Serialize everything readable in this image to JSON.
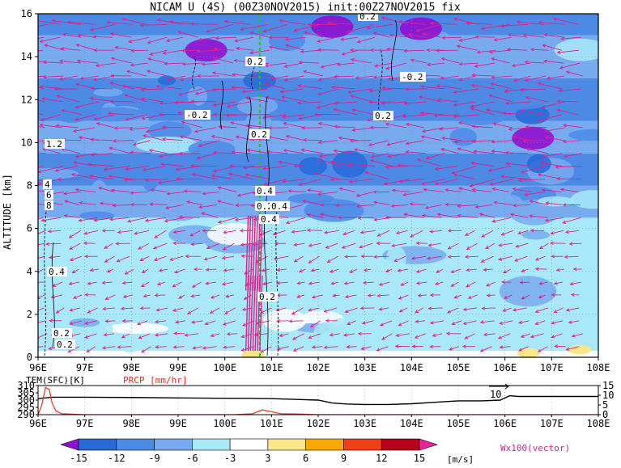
{
  "chart_data": {
    "type": "heatmap",
    "title": "NICAM U (4S) (00Z30NOV2015) init:00Z27NOV2015 fix",
    "main": {
      "xlabel": "",
      "ylabel": "ALTITUDE [km]",
      "x_ticks": [
        "96E",
        "97E",
        "98E",
        "99E",
        "100E",
        "101E",
        "102E",
        "103E",
        "104E",
        "105E",
        "106E",
        "107E",
        "108E"
      ],
      "x_range": [
        96,
        108
      ],
      "y_ticks": [
        0,
        2,
        4,
        6,
        8,
        10,
        12,
        14,
        16
      ],
      "y_range": [
        0,
        16
      ],
      "grid": true,
      "marker_longitude": 100.75,
      "u_bands": [
        {
          "y0": 0,
          "y1": 0.3,
          "u": 0
        },
        {
          "y0": 0.3,
          "y1": 2.5,
          "u": -4.5
        },
        {
          "y0": 2.5,
          "y1": 4.5,
          "u": -3.2
        },
        {
          "y0": 4.5,
          "y1": 6.5,
          "u": -5
        },
        {
          "y0": 6.5,
          "y1": 8,
          "u": -7.5
        },
        {
          "y0": 8,
          "y1": 9.5,
          "u": -10.5
        },
        {
          "y0": 9.5,
          "y1": 11,
          "u": -8.5
        },
        {
          "y0": 11,
          "y1": 13,
          "u": -10
        },
        {
          "y0": 13,
          "y1": 15,
          "u": -8
        },
        {
          "y0": 15,
          "y1": 16,
          "u": -12
        }
      ],
      "contour_labels": [
        "0.2",
        "0.2",
        "-0.2",
        "-0.2",
        "0.2",
        "1.2",
        "4",
        "6",
        "8",
        "0.4",
        "0.2",
        "0.4",
        "0.4",
        "0.2",
        "0.2",
        "0.2",
        "0.4",
        "0.2"
      ]
    },
    "bottom": {
      "tem_label": "TEM(SFC)[K]",
      "prcp_label": "PRCP [mm/hr]",
      "left_ticks": [
        310,
        305,
        300,
        295,
        290
      ],
      "left_range": [
        290,
        310
      ],
      "right_ticks": [
        15,
        10,
        5,
        0
      ],
      "right_range": [
        0,
        15
      ],
      "x_ticks": [
        "96E",
        "97E",
        "98E",
        "99E",
        "100E",
        "101E",
        "102E",
        "103E",
        "104E",
        "105E",
        "106E",
        "107E",
        "108E"
      ],
      "peak_label": "10",
      "tem_series": {
        "lon": [
          96,
          96.3,
          97,
          98,
          99,
          99.8,
          100.5,
          101,
          101.5,
          102,
          102.3,
          102.6,
          103,
          103.5,
          104,
          104.5,
          105,
          105.5,
          105.9,
          106.1,
          106.3,
          107,
          108
        ],
        "values": [
          301,
          302,
          302,
          301.8,
          301.5,
          301.3,
          301.2,
          301,
          300.5,
          300,
          298,
          297.3,
          297,
          297,
          297.5,
          298.5,
          299.5,
          299.5,
          300,
          303,
          302.5,
          302.5,
          302.5
        ]
      },
      "prcp_series": {
        "lon": [
          96,
          96.08,
          96.16,
          96.24,
          96.3,
          96.38,
          96.5,
          97,
          99,
          100.2,
          100.6,
          100.8,
          101,
          101.2,
          101.6,
          102,
          102.5,
          103,
          108
        ],
        "values": [
          0,
          5,
          14,
          13,
          6,
          2,
          0.5,
          0,
          0,
          0,
          0.5,
          2.5,
          1.5,
          0.5,
          0.3,
          0,
          0,
          0,
          0
        ]
      }
    },
    "colorbar": {
      "ticks": [
        "-15",
        "-12",
        "-9",
        "-6",
        "-3",
        "3",
        "6",
        "9",
        "12",
        "15"
      ],
      "unit": "[m/s]",
      "colors": [
        "#9010d0",
        "#2868d8",
        "#4c8ae6",
        "#78aaf0",
        "#a8e8f8",
        "#ffffff",
        "#fae68a",
        "#f8a800",
        "#f04018",
        "#b80018",
        "#e8249a"
      ],
      "vector_label": "Wx100(vector)"
    }
  }
}
